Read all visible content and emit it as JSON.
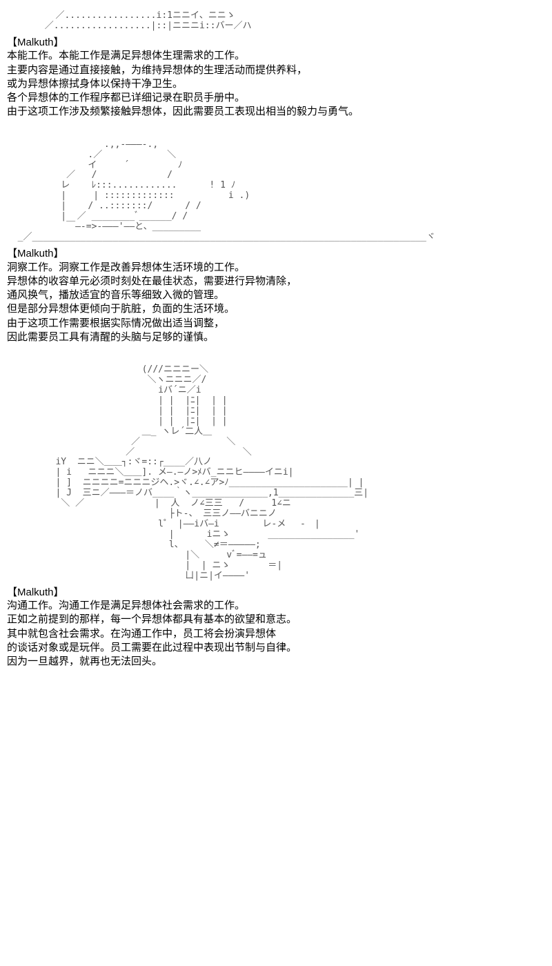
{
  "sections": [
    {
      "art": "         ／.................i:1ニニイ、ニニゝ\n       ／..................|::|ニニニi::バー／ハ",
      "speaker": "【Malkuth】",
      "lines": [
        "本能工作。本能工作是满足异想体生理需求的工作。",
        "主要内容是通过直接接触，为维持异想体的生理活动而提供养料，",
        "或为异想体擦拭身体以保持干净卫生。",
        "各个异想体的工作程序都已详细记录在职员手册中。",
        "由于这项工作涉及频繁接触异想体，因此需要员工表现出相当的毅力与勇气。"
      ]
    },
    {
      "art": "                  .,,-―――-.,\n               .／            ＼\n               イ     ´         ﾉ\n           ／   /             /\n          レ    ﾚ:::............      ! 1 ﾉ\n          |     | :::::::::::::          i .)\n          |    / ..:::::::/      / /\n          |  ／ ________ﾞ______/ /\n           ￣―-=>-―――'――と、_________\n  _／_________________________________________________________________________ヾ",
      "speaker": "【Malkuth】",
      "lines": [
        "洞察工作。洞察工作是改善异想体生活环境的工作。",
        "异想体的收容单元必须时刻处在最佳状态，需要进行异物清除，",
        "通风换气，播放适宜的音乐等细致入微的管理。",
        "但是部分异想体更倾向于肮脏，负面的生活环境。",
        "由于这项工作需要根据实际情况做出适当调整，",
        "因此需要员工具有清醒的头脑与足够的谨慎。"
      ]
    },
    {
      "art": "                         (///ニニニー＼\n                          ＼ヽニニニ／/\n                            iバ´ニ／i\n                            | |  |ﾆ|  | |\n                            | |  |ﾆ|  | |\n                            | |  |ﾆ|  | |\n                         ＿_ ヽレ´二人＿\n                       ／                ＼\n                      ／                    ＼\n         iY  ニニ＼＿＿┐:ヾ=::┌____／八ノ\n         | i   ニニニ＼＿＿]. メ―.―ノ>ﾒバ_ニニヒ――――イニi|\n         | ]  ニニニニ=ニニニジヘ.>ヾ.∠.∠ア>ﾉ______________________| |\n         | J  三ニ／―――＝ノバ____｀ヽ______________,1______________三|\n          ＼ ／             |  人  ノ∠三三   /     1∠ニ\n                              ├ト-、 三三ノ――バニニノ\n                            l゜ |――iバ―i        レ-メ　 -　|\n                              |      iニゝ       ________________'\n                              l、    ＼≠＝―――――;\n                                 |＼     vﾞ=――=ュ\n                                 |  | ニゝ       ＝|\n                                 ㄩ|ニ|イ――――'",
      "speaker": "【Malkuth】",
      "lines": [
        "沟通工作。沟通工作是满足异想体社会需求的工作。",
        "正如之前提到的那样，每一个异想体都具有基本的欲望和意志。",
        "其中就包含社会需求。在沟通工作中，员工将会扮演异想体",
        "的谈话对象或是玩伴。员工需要在此过程中表现出节制与自律。",
        "因为一旦越界，就再也无法回头。"
      ]
    }
  ]
}
